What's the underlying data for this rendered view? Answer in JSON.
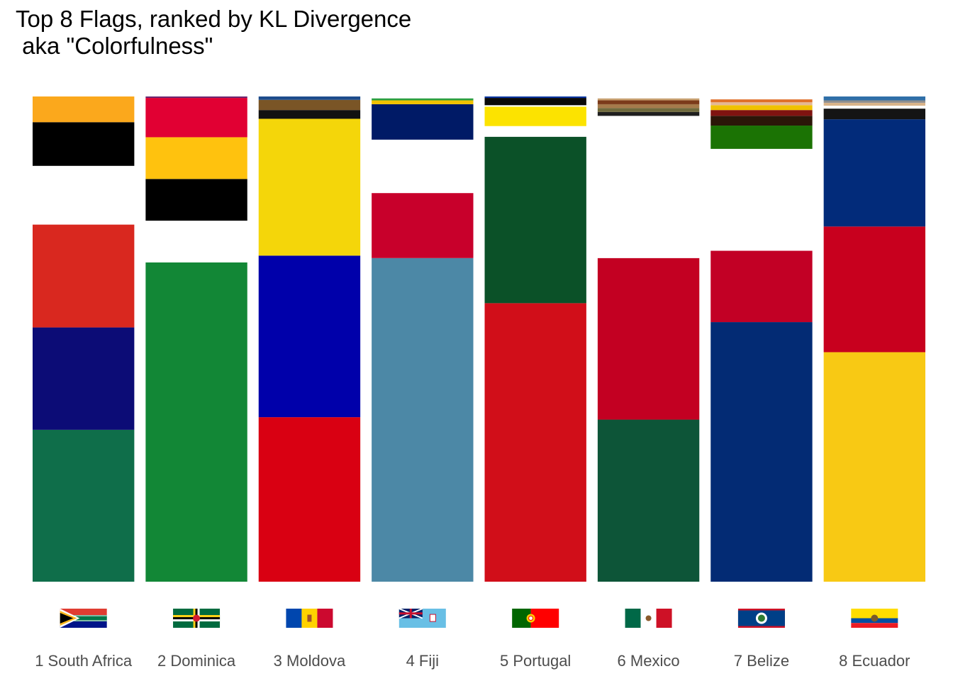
{
  "chart_data": {
    "type": "bar",
    "stacked": true,
    "normalized": true,
    "title_line1": "Top 8 Flags, ranked by KL Divergence",
    "title_line2": " aka \"Colorfulness\"",
    "xlabel": "",
    "ylabel": "",
    "ylim": [
      0,
      1
    ],
    "grid": false,
    "legend": "none",
    "categories": [
      {
        "rank": 1,
        "label": "1 South Africa",
        "country": "South Africa",
        "icon": "flag-south-africa-icon",
        "segments": [
          {
            "color": "#0F6E4A",
            "value": 0.313
          },
          {
            "color": "#0C0C76",
            "value": 0.211
          },
          {
            "color": "#D9281F",
            "value": 0.212
          },
          {
            "color": "#FFFFFF",
            "value": 0.121
          },
          {
            "color": "#000000",
            "value": 0.09
          },
          {
            "color": "#FBA81C",
            "value": 0.053
          }
        ]
      },
      {
        "rank": 2,
        "label": "2 Dominica",
        "country": "Dominica",
        "icon": "flag-dominica-icon",
        "segments": [
          {
            "color": "#128736",
            "value": 0.658
          },
          {
            "color": "#FFFFFF",
            "value": 0.086
          },
          {
            "color": "#000000",
            "value": 0.086
          },
          {
            "color": "#FFC20E",
            "value": 0.086
          },
          {
            "color": "#E10033",
            "value": 0.081
          },
          {
            "color": "#6C2670",
            "value": 0.003
          }
        ]
      },
      {
        "rank": 3,
        "label": "3 Moldova",
        "country": "Moldova",
        "icon": "flag-moldova-icon",
        "segments": [
          {
            "color": "#D90012",
            "value": 0.339
          },
          {
            "color": "#0000AA",
            "value": 0.333
          },
          {
            "color": "#F4D60A",
            "value": 0.282
          },
          {
            "color": "#111111",
            "value": 0.018
          },
          {
            "color": "#7A5526",
            "value": 0.021
          },
          {
            "color": "#1E4C8C",
            "value": 0.007
          }
        ]
      },
      {
        "rank": 4,
        "label": "4 Fiji",
        "country": "Fiji",
        "icon": "flag-fiji-icon",
        "segments": [
          {
            "color": "#4C88A6",
            "value": 0.667
          },
          {
            "color": "#C8002B",
            "value": 0.134
          },
          {
            "color": "#FFFFFF",
            "value": 0.11
          },
          {
            "color": "#001A66",
            "value": 0.073
          },
          {
            "color": "#F2C200",
            "value": 0.008
          },
          {
            "color": "#2A9F40",
            "value": 0.004
          }
        ]
      },
      {
        "rank": 5,
        "label": "5 Portugal",
        "country": "Portugal",
        "icon": "flag-portugal-icon",
        "segments": [
          {
            "color": "#D10E19",
            "value": 0.574
          },
          {
            "color": "#0B5128",
            "value": 0.343
          },
          {
            "color": "#FFFFFF",
            "value": 0.022
          },
          {
            "color": "#FCE300",
            "value": 0.04
          },
          {
            "color": "#FFFFFF",
            "value": 0.003
          },
          {
            "color": "#0A0A0A",
            "value": 0.015
          },
          {
            "color": "#0033A0",
            "value": 0.003
          }
        ]
      },
      {
        "rank": 6,
        "label": "6 Mexico",
        "country": "Mexico",
        "icon": "flag-mexico-icon",
        "segments": [
          {
            "color": "#0D5538",
            "value": 0.334
          },
          {
            "color": "#C30022",
            "value": 0.333
          },
          {
            "color": "#FFFFFF",
            "value": 0.293
          },
          {
            "color": "#1F1F1F",
            "value": 0.008
          },
          {
            "color": "#6F6A3E",
            "value": 0.008
          },
          {
            "color": "#A57A4B",
            "value": 0.008
          },
          {
            "color": "#7B3A1A",
            "value": 0.008
          },
          {
            "color": "#C8A070",
            "value": 0.004
          }
        ]
      },
      {
        "rank": 7,
        "label": "7 Belize",
        "country": "Belize",
        "icon": "flag-belize-icon",
        "segments": [
          {
            "color": "#032B74",
            "value": 0.535
          },
          {
            "color": "#C20025",
            "value": 0.147
          },
          {
            "color": "#FFFFFF",
            "value": 0.21
          },
          {
            "color": "#1B7304",
            "value": 0.048
          },
          {
            "color": "#2B1608",
            "value": 0.02
          },
          {
            "color": "#7F1310",
            "value": 0.012
          },
          {
            "color": "#F0C200",
            "value": 0.01
          },
          {
            "color": "#E5B893",
            "value": 0.006
          },
          {
            "color": "#E0702A",
            "value": 0.006
          }
        ]
      },
      {
        "rank": 8,
        "label": "8 Ecuador",
        "country": "Ecuador",
        "icon": "flag-ecuador-icon",
        "segments": [
          {
            "color": "#F8C914",
            "value": 0.473
          },
          {
            "color": "#C8001E",
            "value": 0.259
          },
          {
            "color": "#022B7A",
            "value": 0.221
          },
          {
            "color": "#141414",
            "value": 0.022
          },
          {
            "color": "#FFFFFF",
            "value": 0.006
          },
          {
            "color": "#D9B48A",
            "value": 0.006
          },
          {
            "color": "#8E8E8E",
            "value": 0.005
          },
          {
            "color": "#2F6FA8",
            "value": 0.008
          }
        ]
      }
    ]
  }
}
